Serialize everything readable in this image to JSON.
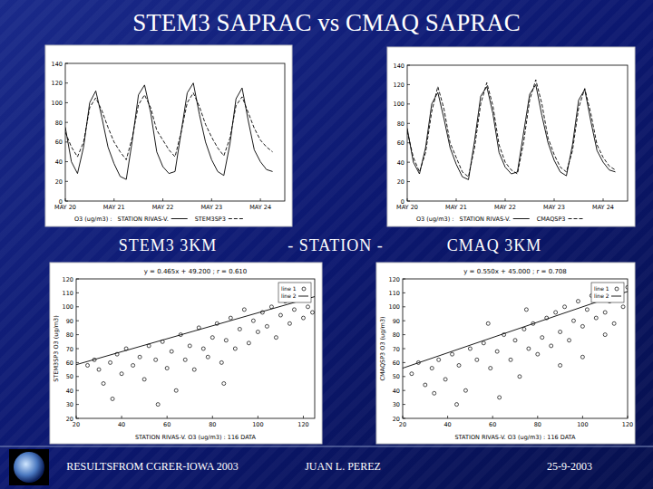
{
  "slide": {
    "title": "STEM3 SAPRAC vs CMAQ SAPRAC",
    "panel_labels": [
      "STEM3 3KM",
      "- STATION -",
      "CMAQ 3KM"
    ],
    "footer": [
      "RESULTSFROM CGRER-IOWA 2003",
      "JUAN L. PEREZ",
      "25-9-2003"
    ]
  },
  "chart_data": [
    {
      "type": "line",
      "x_label": "O3 (ug/m3) :",
      "legend": "bottom",
      "x": [
        0,
        3,
        6,
        9,
        12,
        15,
        18,
        21,
        24,
        27,
        30,
        33,
        36,
        39,
        42,
        45,
        48,
        51,
        54,
        57,
        60,
        63,
        66,
        69,
        72,
        75,
        78,
        81,
        84,
        87,
        90,
        93,
        96,
        99,
        102
      ],
      "xlim": [
        0,
        108
      ],
      "xticks": [
        {
          "value": 0,
          "label": "MAY 20"
        },
        {
          "value": 24,
          "label": "MAY 21"
        },
        {
          "value": 48,
          "label": "MAY 22"
        },
        {
          "value": 72,
          "label": "MAY 23"
        },
        {
          "value": 96,
          "label": "MAY 24"
        }
      ],
      "ylim": [
        0,
        140
      ],
      "yticks": [
        0,
        20,
        40,
        60,
        80,
        100,
        120,
        140
      ],
      "series": [
        {
          "name": "STATION RIVAS-V.",
          "color": "#000000",
          "line_style": "solid",
          "values": [
            75,
            40,
            28,
            55,
            100,
            112,
            85,
            55,
            38,
            25,
            22,
            62,
            108,
            118,
            90,
            50,
            35,
            28,
            30,
            70,
            110,
            120,
            88,
            60,
            42,
            30,
            26,
            58,
            104,
            115,
            82,
            52,
            40,
            32,
            30
          ]
        },
        {
          "name": "STEM3SP3",
          "color": "#000000",
          "line_style": "dashed",
          "values": [
            70,
            55,
            45,
            60,
            95,
            105,
            92,
            75,
            60,
            50,
            42,
            65,
            98,
            108,
            95,
            72,
            62,
            52,
            45,
            70,
            100,
            110,
            96,
            78,
            65,
            54,
            46,
            64,
            97,
            106,
            90,
            74,
            62,
            55,
            50
          ]
        }
      ]
    },
    {
      "type": "line",
      "x_label": "O3 (ug/m3) :",
      "legend": "bottom",
      "x": [
        0,
        3,
        6,
        9,
        12,
        15,
        18,
        21,
        24,
        27,
        30,
        33,
        36,
        39,
        42,
        45,
        48,
        51,
        54,
        57,
        60,
        63,
        66,
        69,
        72,
        75,
        78,
        81,
        84,
        87,
        90,
        93,
        96,
        99,
        102
      ],
      "xlim": [
        0,
        108
      ],
      "xticks": [
        {
          "value": 0,
          "label": "MAY 20"
        },
        {
          "value": 24,
          "label": "MAY 21"
        },
        {
          "value": 48,
          "label": "MAY 22"
        },
        {
          "value": 72,
          "label": "MAY 23"
        },
        {
          "value": 96,
          "label": "MAY 24"
        }
      ],
      "ylim": [
        0,
        140
      ],
      "yticks": [
        0,
        20,
        40,
        60,
        80,
        100,
        120,
        140
      ],
      "series": [
        {
          "name": "STATION RIVAS-V.",
          "color": "#000000",
          "line_style": "solid",
          "values": [
            75,
            40,
            28,
            55,
            100,
            112,
            85,
            55,
            38,
            25,
            22,
            62,
            108,
            118,
            90,
            50,
            35,
            28,
            30,
            70,
            110,
            120,
            88,
            60,
            42,
            30,
            26,
            58,
            104,
            115,
            82,
            52,
            40,
            32,
            30
          ]
        },
        {
          "name": "CMAQSP3",
          "color": "#000000",
          "line_style": "dashed",
          "values": [
            72,
            45,
            30,
            50,
            92,
            118,
            95,
            60,
            45,
            30,
            25,
            55,
            100,
            122,
            98,
            58,
            40,
            32,
            28,
            60,
            104,
            125,
            100,
            65,
            48,
            35,
            30,
            52,
            96,
            116,
            90,
            58,
            45,
            36,
            32
          ]
        }
      ]
    },
    {
      "type": "scatter",
      "annotation": "y = 0.465x + 49.200 ; r = 0.610",
      "x_label": "STATION RIVAS-V. O3 (ug/m3) : 116 DATA",
      "y_label": "STEM3SP3 O3 (ug/m3)",
      "legend": "upper right",
      "xlim": [
        20,
        125
      ],
      "xticks": [
        20,
        40,
        60,
        80,
        100,
        120
      ],
      "ylim": [
        20,
        120
      ],
      "yticks": [
        20,
        30,
        40,
        50,
        60,
        70,
        80,
        90,
        100,
        110,
        120
      ],
      "series": [
        {
          "name": "line 1",
          "type": "scatter",
          "marker": "circle",
          "color": "#000000",
          "x": [
            25,
            28,
            30,
            32,
            35,
            38,
            40,
            42,
            45,
            48,
            50,
            52,
            55,
            58,
            60,
            62,
            64,
            66,
            68,
            70,
            72,
            74,
            76,
            78,
            80,
            82,
            84,
            86,
            88,
            90,
            92,
            94,
            96,
            98,
            100,
            102,
            104,
            106,
            108,
            110,
            112,
            114,
            116,
            118,
            120,
            122,
            124,
            36,
            56,
            85
          ],
          "values": [
            58,
            62,
            55,
            45,
            60,
            66,
            52,
            70,
            58,
            64,
            48,
            72,
            62,
            75,
            56,
            68,
            40,
            80,
            62,
            72,
            55,
            85,
            70,
            64,
            78,
            88,
            60,
            76,
            92,
            70,
            84,
            98,
            74,
            90,
            82,
            96,
            86,
            100,
            78,
            94,
            104,
            88,
            98,
            106,
            92,
            100,
            96,
            34,
            30,
            45
          ]
        },
        {
          "name": "line 2",
          "type": "line",
          "line_style": "solid",
          "color": "#000000",
          "x": [
            20,
            125
          ],
          "values": [
            58.5,
            107.3
          ]
        }
      ]
    },
    {
      "type": "scatter",
      "annotation": "y = 0.550x + 45.000 ; r = 0.708",
      "x_label": "STATION RIVAS-V. O3 (ug/m3) : 116 DATA",
      "y_label": "CMAQSP3 O3 (ug/m3)",
      "legend": "upper right",
      "xlim": [
        20,
        120
      ],
      "xticks": [
        20,
        40,
        60,
        80,
        100,
        120
      ],
      "ylim": [
        20,
        120
      ],
      "yticks": [
        20,
        30,
        40,
        50,
        60,
        70,
        80,
        90,
        100,
        110,
        120
      ],
      "series": [
        {
          "name": "line 1",
          "type": "scatter",
          "marker": "circle",
          "color": "#000000",
          "x": [
            24,
            27,
            30,
            33,
            36,
            39,
            42,
            45,
            48,
            50,
            53,
            56,
            59,
            62,
            65,
            68,
            70,
            72,
            74,
            76,
            78,
            80,
            82,
            84,
            86,
            88,
            90,
            92,
            94,
            96,
            98,
            100,
            102,
            104,
            106,
            108,
            110,
            112,
            114,
            116,
            118,
            120,
            63,
            44,
            90,
            100,
            34,
            58,
            75,
            110
          ],
          "values": [
            52,
            60,
            44,
            56,
            62,
            48,
            66,
            58,
            40,
            70,
            62,
            74,
            56,
            68,
            80,
            62,
            76,
            50,
            84,
            70,
            88,
            66,
            78,
            92,
            72,
            96,
            82,
            100,
            76,
            90,
            104,
            86,
            98,
            108,
            92,
            112,
            96,
            104,
            88,
            110,
            100,
            114,
            35,
            30,
            58,
            64,
            38,
            88,
            98,
            80
          ]
        },
        {
          "name": "line 2",
          "type": "line",
          "line_style": "solid",
          "color": "#000000",
          "x": [
            20,
            120
          ],
          "values": [
            56,
            111
          ]
        }
      ]
    }
  ]
}
